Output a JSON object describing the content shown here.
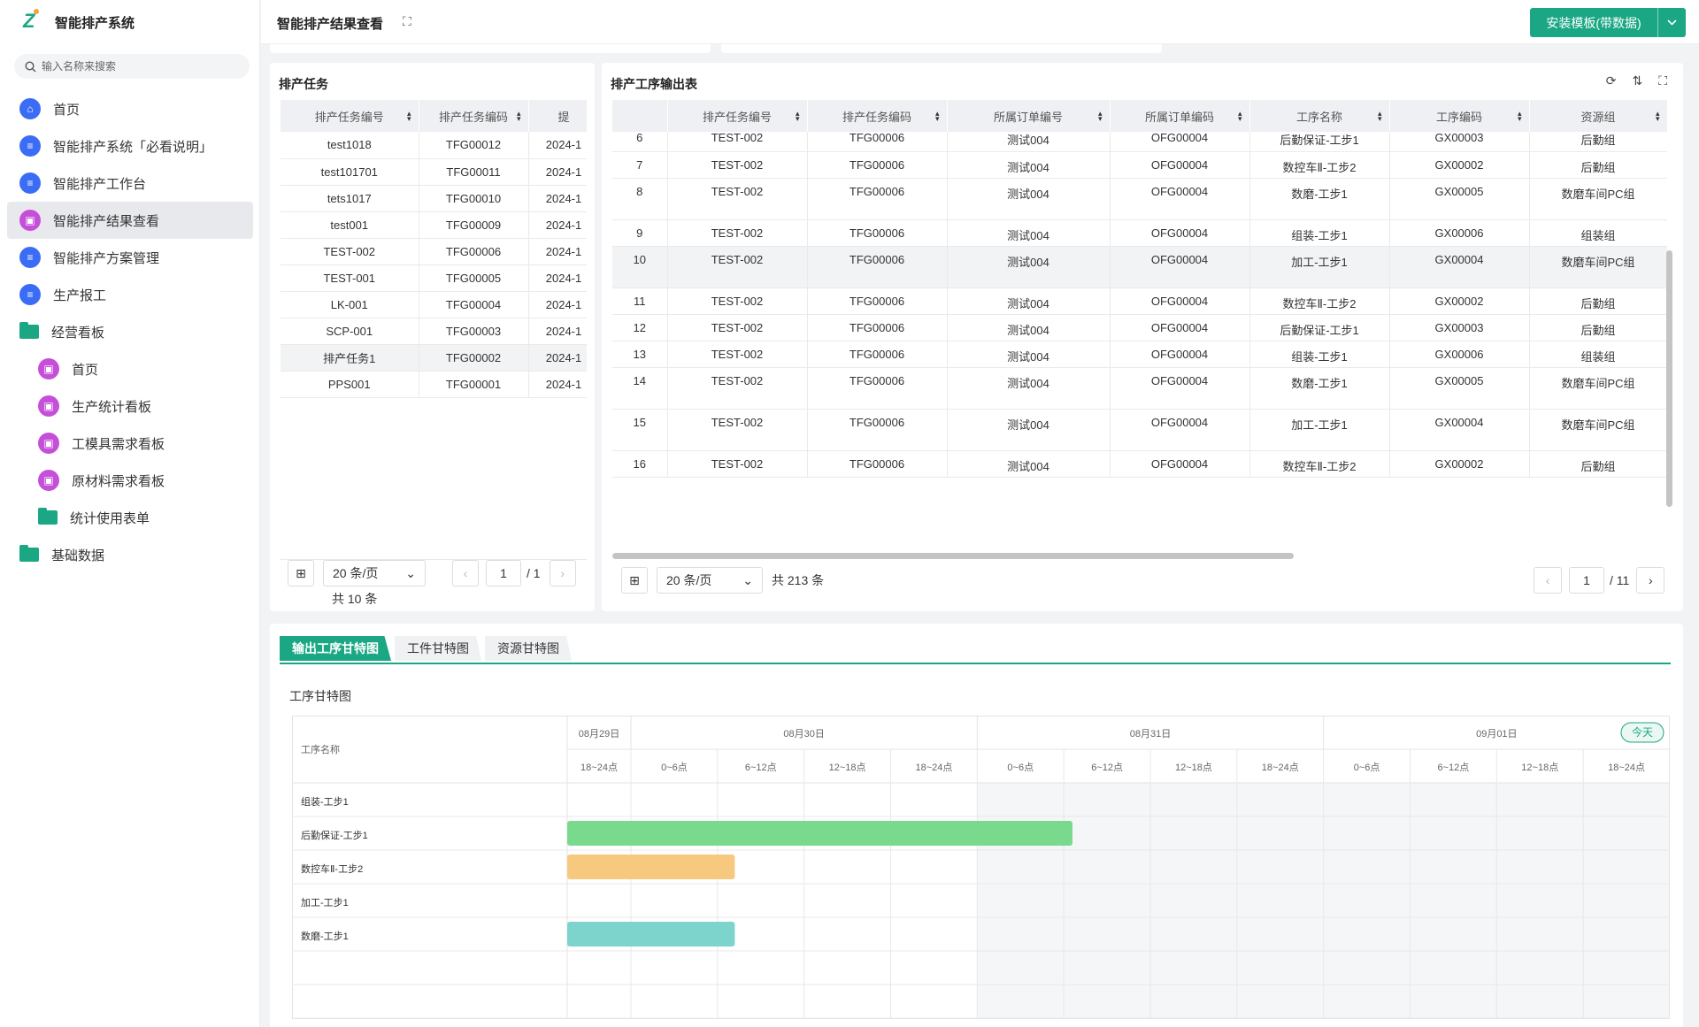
{
  "app": {
    "title": "智能排产系统"
  },
  "sidebar": {
    "search_placeholder": "输入名称来搜索",
    "items": [
      {
        "label": "首页",
        "icon": "home-icon"
      },
      {
        "label": "智能排产系统「必看说明」",
        "icon": "doc-icon"
      },
      {
        "label": "智能排产工作台",
        "icon": "doc-icon"
      },
      {
        "label": "智能排产结果查看",
        "icon": "screen-icon",
        "active": true
      },
      {
        "label": "智能排产方案管理",
        "icon": "doc-icon"
      },
      {
        "label": "生产报工",
        "icon": "doc-icon"
      },
      {
        "label": "经营看板",
        "icon": "folder-icon"
      },
      {
        "label": "首页",
        "icon": "screen-icon",
        "child": true
      },
      {
        "label": "生产统计看板",
        "icon": "screen-icon",
        "child": true
      },
      {
        "label": "工模具需求看板",
        "icon": "screen-icon",
        "child": true
      },
      {
        "label": "原材料需求看板",
        "icon": "screen-icon",
        "child": true
      },
      {
        "label": "统计使用表单",
        "icon": "folder-icon",
        "child": true
      },
      {
        "label": "基础数据",
        "icon": "folder-icon"
      }
    ]
  },
  "header": {
    "page_title": "智能排产结果查看",
    "install_button": "安装模板(带数据)"
  },
  "tasks": {
    "title": "排产任务",
    "columns": [
      "排产任务编号",
      "排产任务编码",
      "提"
    ],
    "rows": [
      [
        "test1018",
        "TFG00012",
        "2024-1"
      ],
      [
        "test101701",
        "TFG00011",
        "2024-1"
      ],
      [
        "tets1017",
        "TFG00010",
        "2024-1"
      ],
      [
        "test001",
        "TFG00009",
        "2024-1"
      ],
      [
        "TEST-002",
        "TFG00006",
        "2024-1"
      ],
      [
        "TEST-001",
        "TFG00005",
        "2024-1"
      ],
      [
        "LK-001",
        "TFG00004",
        "2024-1"
      ],
      [
        "SCP-001",
        "TFG00003",
        "2024-1"
      ],
      [
        "排产任务1",
        "TFG00002",
        "2024-1"
      ],
      [
        "PPS001",
        "TFG00001",
        "2024-1"
      ]
    ],
    "page_size": "20 条/页",
    "total": "共 10 条",
    "page": "1",
    "pages": "/ 1"
  },
  "output": {
    "title": "排产工序输出表",
    "columns": [
      "",
      "排产任务编号",
      "排产任务编码",
      "所属订单编号",
      "所属订单编码",
      "工序名称",
      "工序编码",
      "资源组"
    ],
    "rows": [
      [
        "6",
        "TEST-002",
        "TFG00006",
        "测试004",
        "OFG00004",
        "后勤保证-工步1",
        "GX00003",
        "后勤组"
      ],
      [
        "7",
        "TEST-002",
        "TFG00006",
        "测试004",
        "OFG00004",
        "数控车Ⅱ-工步2",
        "GX00002",
        "后勤组"
      ],
      [
        "8",
        "TEST-002",
        "TFG00006",
        "测试004",
        "OFG00004",
        "数磨-工步1",
        "GX00005",
        "数磨车间PC组"
      ],
      [
        "9",
        "TEST-002",
        "TFG00006",
        "测试004",
        "OFG00004",
        "组装-工步1",
        "GX00006",
        "组装组"
      ],
      [
        "10",
        "TEST-002",
        "TFG00006",
        "测试004",
        "OFG00004",
        "加工-工步1",
        "GX00004",
        "数磨车间PC组"
      ],
      [
        "11",
        "TEST-002",
        "TFG00006",
        "测试004",
        "OFG00004",
        "数控车Ⅱ-工步2",
        "GX00002",
        "后勤组"
      ],
      [
        "12",
        "TEST-002",
        "TFG00006",
        "测试004",
        "OFG00004",
        "后勤保证-工步1",
        "GX00003",
        "后勤组"
      ],
      [
        "13",
        "TEST-002",
        "TFG00006",
        "测试004",
        "OFG00004",
        "组装-工步1",
        "GX00006",
        "组装组"
      ],
      [
        "14",
        "TEST-002",
        "TFG00006",
        "测试004",
        "OFG00004",
        "数磨-工步1",
        "GX00005",
        "数磨车间PC组"
      ],
      [
        "15",
        "TEST-002",
        "TFG00006",
        "测试004",
        "OFG00004",
        "加工-工步1",
        "GX00004",
        "数磨车间PC组"
      ],
      [
        "16",
        "TEST-002",
        "TFG00006",
        "测试004",
        "OFG00004",
        "数控车Ⅱ-工步2",
        "GX00002",
        "后勤组"
      ]
    ],
    "page_size": "20 条/页",
    "total": "共 213 条",
    "page": "1",
    "pages": "/ 11"
  },
  "gantt_tabs": [
    "输出工序甘特图",
    "工件甘特图",
    "资源甘特图"
  ],
  "gantt": {
    "title": "工序甘特图",
    "row_header": "工序名称",
    "today": "今天",
    "dates": [
      "08月29日",
      "08月30日",
      "08月31日",
      "09月01日"
    ],
    "slots": [
      "18~24点",
      "0~6点",
      "6~12点",
      "12~18点",
      "18~24点",
      "0~6点",
      "6~12点",
      "12~18点",
      "18~24点",
      "0~6点",
      "6~12点",
      "12~18点",
      "18~24点"
    ],
    "rows": [
      "组装-工步1",
      "后勤保证-工步1",
      "数控车Ⅱ-工步2",
      "加工-工步1",
      "数磨-工步1",
      "",
      ""
    ],
    "bars": [
      {
        "row": 1,
        "start_slot": 0,
        "end_slot": 6.1,
        "color": "#79d98d"
      },
      {
        "row": 2,
        "start_slot": 0,
        "end_slot": 2.2,
        "color": "#f6c97e"
      },
      {
        "row": 4,
        "start_slot": 0,
        "end_slot": 2.2,
        "color": "#7cd4cc"
      }
    ],
    "colors": {
      "accent": "#1ba784",
      "weekend_shade": "#f5f6f7"
    }
  }
}
